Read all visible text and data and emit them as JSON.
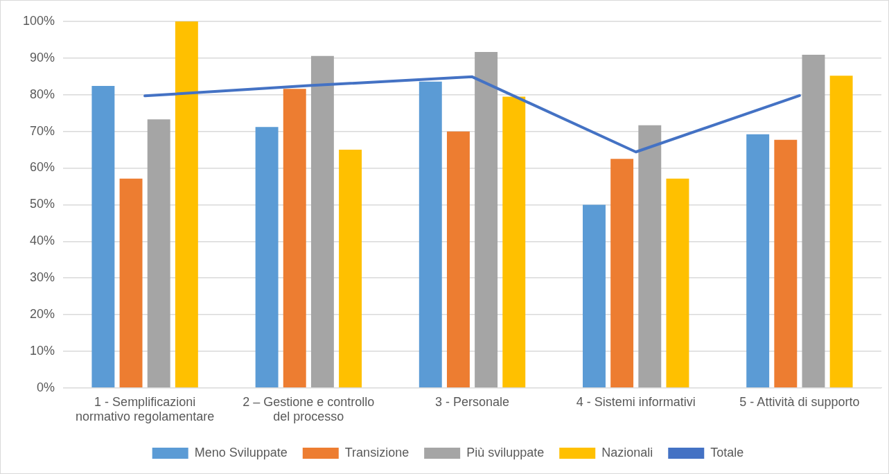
{
  "chart_data": {
    "type": "bar",
    "categories": [
      "1 - Semplificazioni normativo regolamentare",
      "2 – Gestione e controllo del processo",
      "3 - Personale",
      "4 - Sistemi informativi",
      "5 - Attività di supporto"
    ],
    "series": [
      {
        "name": "Meno Sviluppate",
        "color": "#5b9bd5",
        "values": [
          82.4,
          71.2,
          83.6,
          50.0,
          69.2
        ]
      },
      {
        "name": "Transizione",
        "color": "#ed7d31",
        "values": [
          57.1,
          81.6,
          70.0,
          62.5,
          67.7
        ]
      },
      {
        "name": "Più sviluppate",
        "color": "#a5a5a5",
        "values": [
          73.3,
          90.6,
          91.7,
          71.7,
          90.9
        ]
      },
      {
        "name": "Nazionali",
        "color": "#ffc000",
        "values": [
          100,
          65.0,
          79.5,
          57.1,
          85.2
        ]
      },
      {
        "name": "Totale",
        "type": "line",
        "color": "#4472c4",
        "values": [
          79.7,
          82.5,
          84.9,
          64.4,
          79.8
        ]
      }
    ],
    "ylim": [
      0,
      100
    ],
    "yticks": [
      {
        "value": 0,
        "label": "0%"
      },
      {
        "value": 10,
        "label": "10%"
      },
      {
        "value": 20,
        "label": "20%"
      },
      {
        "value": 30,
        "label": "30%"
      },
      {
        "value": 40,
        "label": "40%"
      },
      {
        "value": 50,
        "label": "50%"
      },
      {
        "value": 60,
        "label": "60%"
      },
      {
        "value": 70,
        "label": "70%"
      },
      {
        "value": 80,
        "label": "80%"
      },
      {
        "value": 90,
        "label": "90%"
      },
      {
        "value": 100,
        "label": "100%"
      }
    ],
    "grid": "y",
    "legend": "bottom",
    "marker": "none",
    "line_style": "solid"
  }
}
